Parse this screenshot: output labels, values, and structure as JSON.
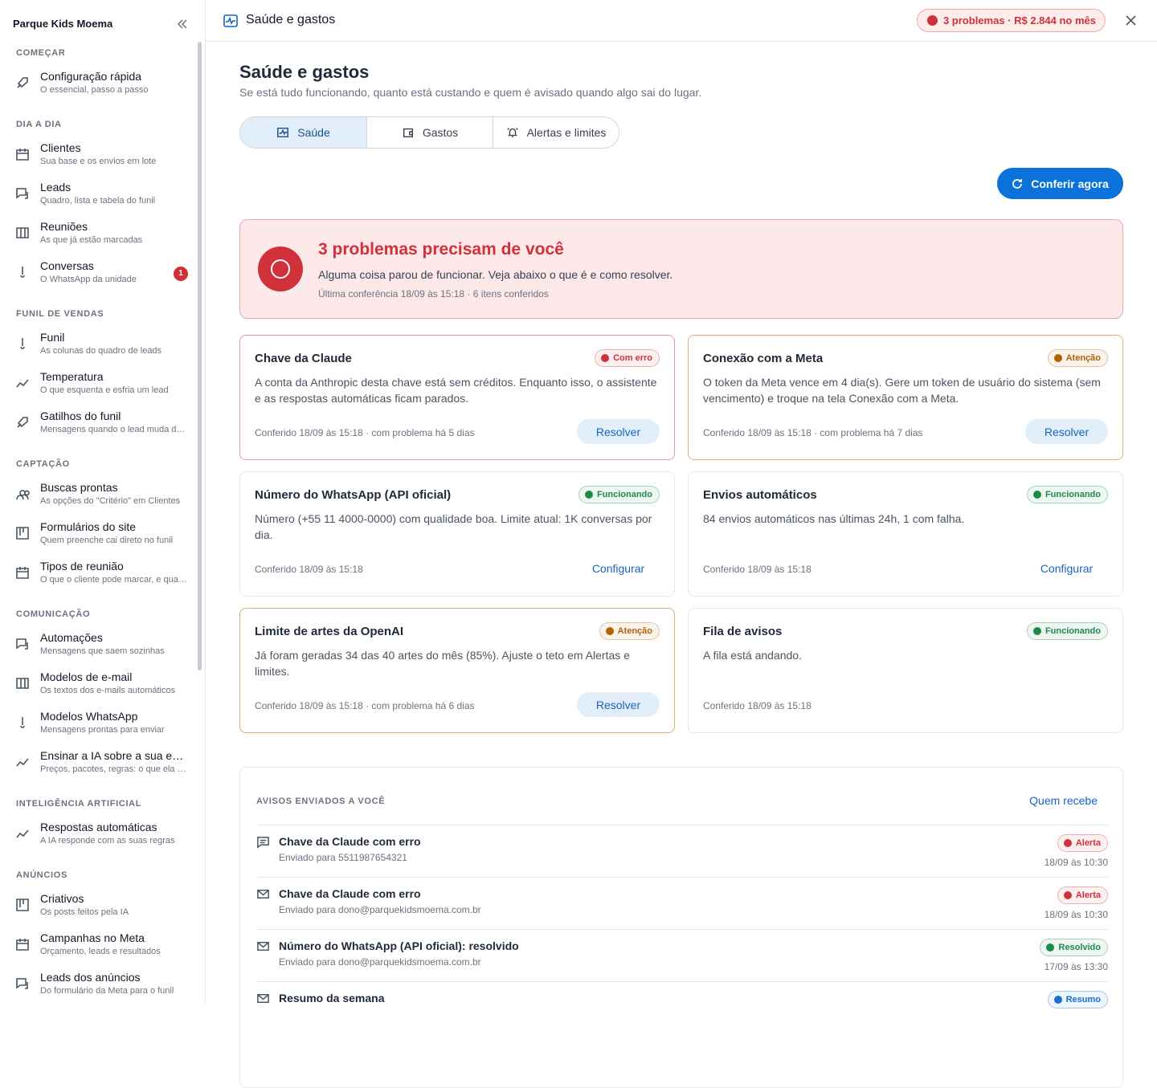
{
  "sidebar": {
    "org": "Parque Kids Moema",
    "sections": [
      {
        "title": "COMEÇAR",
        "items": [
          {
            "title": "Configuração rápida",
            "subtitle": "O essencial, passo a passo"
          }
        ]
      },
      {
        "title": "DIA A DIA",
        "items": [
          {
            "title": "Clientes",
            "subtitle": "Sua base e os envios em lote"
          },
          {
            "title": "Leads",
            "subtitle": "Quadro, lista e tabela do funil"
          },
          {
            "title": "Reuniões",
            "subtitle": "As que já estão marcadas"
          },
          {
            "title": "Conversas",
            "subtitle": "O WhatsApp da unidade",
            "badge": 1
          }
        ]
      },
      {
        "title": "FUNIL DE VENDAS",
        "items": [
          {
            "title": "Funil",
            "subtitle": "As colunas do quadro de leads"
          },
          {
            "title": "Temperatura",
            "subtitle": "O que esquenta e esfria um lead"
          },
          {
            "title": "Gatilhos do funil",
            "subtitle": "Mensagens quando o lead muda de etapa"
          }
        ]
      },
      {
        "title": "CAPTAÇÃO",
        "items": [
          {
            "title": "Buscas prontas",
            "subtitle": "As opções do \"Critério\" em Clientes"
          },
          {
            "title": "Formulários do site",
            "subtitle": "Quem preenche cai direto no funil"
          },
          {
            "title": "Tipos de reunião",
            "subtitle": "O que o cliente pode marcar, e quando"
          }
        ]
      },
      {
        "title": "COMUNICAÇÃO",
        "items": [
          {
            "title": "Automações",
            "subtitle": "Mensagens que saem sozinhas"
          },
          {
            "title": "Modelos de e-mail",
            "subtitle": "Os textos dos e-mails automáticos"
          },
          {
            "title": "Modelos WhatsApp",
            "subtitle": "Mensagens prontas para enviar"
          },
          {
            "title": "Ensinar a IA sobre a sua empresa",
            "subtitle": "Preços, pacotes, regras: o que ela precisa saber"
          }
        ]
      },
      {
        "title": "INTELIGÊNCIA ARTIFICIAL",
        "items": [
          {
            "title": "Respostas automáticas",
            "subtitle": "A IA responde com as suas regras"
          }
        ]
      },
      {
        "title": "ANÚNCIOS",
        "items": [
          {
            "title": "Criativos",
            "subtitle": "Os posts feitos pela IA"
          },
          {
            "title": "Campanhas no Meta",
            "subtitle": "Orçamento, leads e resultados"
          },
          {
            "title": "Leads dos anúncios",
            "subtitle": "Do formulário da Meta para o funil"
          }
        ]
      }
    ]
  },
  "header": {
    "title": "Saúde e gastos",
    "badge": "3 problemas · R$ 2.844 no mês"
  },
  "page": {
    "title": "Saúde e gastos",
    "subtitle": "Se está tudo funcionando, quanto está custando e quem é avisado quando algo sai do lugar.",
    "tabs": [
      "Saúde",
      "Gastos",
      "Alertas e limites"
    ],
    "button": "Conferir agora"
  },
  "alert": {
    "title": "3 problemas precisam de você",
    "text": "Alguma coisa parou de funcionar. Veja abaixo o que é e como resolver.",
    "meta": "Última conferência 18/09 às 15:18 · 6 itens conferidos"
  },
  "cards": [
    {
      "title": "Chave da Claude",
      "status": "Com erro",
      "status_color": "#d0313b",
      "text": "A conta da Anthropic desta chave está sem créditos. Enquanto isso, o assistente e as respostas automáticas ficam parados.",
      "meta": "Conferido 18/09 às 15:18 · com problema há 5 dias",
      "action": "Resolver",
      "action_variant": "filled"
    },
    {
      "title": "Conexão com a Meta",
      "status": "Atenção",
      "status_color": "#b36200",
      "text": "O token da Meta vence em 4 dia(s). Gere um token de usuário do sistema (sem vencimento) e troque na tela Conexão com a Meta.",
      "meta": "Conferido 18/09 às 15:18 · com problema há 7 dias",
      "action": "Resolver",
      "action_variant": "filled"
    },
    {
      "title": "Número do WhatsApp (API oficial)",
      "status": "Funcionando",
      "status_color": "#1e8a4c",
      "text": "Número (+55 11 4000-0000) com qualidade boa. Limite atual: 1K conversas por dia.",
      "meta": "Conferido 18/09 às 15:18",
      "action": "Configurar",
      "action_variant": "link"
    },
    {
      "title": "Envios automáticos",
      "status": "Funcionando",
      "status_color": "#1e8a4c",
      "text": "84 envios automáticos nas últimas 24h, 1 com falha.",
      "meta": "Conferido 18/09 às 15:18",
      "action": "Configurar",
      "action_variant": "link"
    },
    {
      "title": "Limite de artes da OpenAI",
      "status": "Atenção",
      "status_color": "#b36200",
      "text": "Já foram geradas 34 das 40 artes do mês (85%). Ajuste o teto em Alertas e limites.",
      "meta": "Conferido 18/09 às 15:18 · com problema há 6 dias",
      "action": "Resolver",
      "action_variant": "filled"
    },
    {
      "title": "Fila de avisos",
      "status": "Funcionando",
      "status_color": "#1e8a4c",
      "text": "A fila está andando.",
      "meta": "Conferido 18/09 às 15:18"
    }
  ],
  "notices": {
    "title": "AVISOS ENVIADOS A VOCÊ",
    "link": "Quem recebe",
    "items": [
      {
        "title": "Chave da Claude com erro",
        "to": "Enviado para 5511987654321",
        "tag": "Alerta",
        "tag_color": "#d0313b",
        "time": "18/09 às 10:30",
        "channel": "whatsapp"
      },
      {
        "title": "Chave da Claude com erro",
        "to": "Enviado para dono@parquekidsmoema.com.br",
        "tag": "Alerta",
        "tag_color": "#d0313b",
        "time": "18/09 às 10:30",
        "channel": "email"
      },
      {
        "title": "Número do WhatsApp (API oficial): resolvido",
        "to": "Enviado para dono@parquekidsmoema.com.br",
        "tag": "Resolvido",
        "tag_color": "#1e8a4c",
        "time": "17/09 às 13:30",
        "channel": "email"
      },
      {
        "title": "Resumo da semana",
        "tag": "Resumo",
        "tag_color": "#1a6fd1",
        "channel": "email"
      }
    ]
  }
}
